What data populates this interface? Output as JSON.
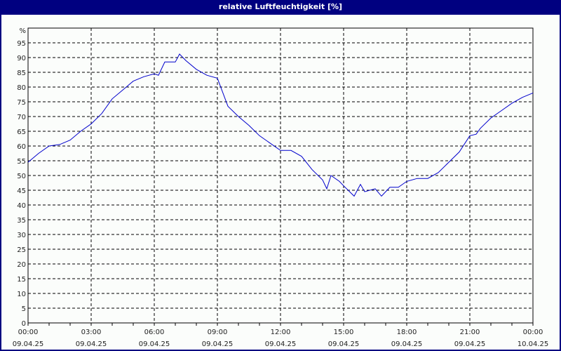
{
  "window": {
    "title": "relative Luftfeuchtigkeit [%]"
  },
  "colors": {
    "titlebar": "#000080",
    "background": "#fbfdfb",
    "series": "#0000cc",
    "grid": "#000000"
  },
  "chart_data": {
    "type": "line",
    "title": "relative Luftfeuchtigkeit [%]",
    "xlabel": "",
    "ylabel": "%",
    "ylim": [
      0,
      100
    ],
    "yticks": [
      0,
      5,
      10,
      15,
      20,
      25,
      30,
      35,
      40,
      45,
      50,
      55,
      60,
      65,
      70,
      75,
      80,
      85,
      90,
      95
    ],
    "xticks": [
      {
        "time": "00:00",
        "date": "09.04.25"
      },
      {
        "time": "03:00",
        "date": "09.04.25"
      },
      {
        "time": "06:00",
        "date": "09.04.25"
      },
      {
        "time": "09:00",
        "date": "09.04.25"
      },
      {
        "time": "12:00",
        "date": "09.04.25"
      },
      {
        "time": "15:00",
        "date": "09.04.25"
      },
      {
        "time": "18:00",
        "date": "09.04.25"
      },
      {
        "time": "21:00",
        "date": "09.04.25"
      },
      {
        "time": "00:00",
        "date": "10.04.25"
      }
    ],
    "grid": true,
    "legend": null,
    "series": [
      {
        "name": "relative Luftfeuchtigkeit",
        "x_hours": [
          0,
          0.5,
          1,
          1.5,
          2,
          2.5,
          3,
          3.5,
          4,
          4.5,
          5,
          5.5,
          6,
          6.2,
          6.5,
          7,
          7.2,
          7.5,
          8,
          8.5,
          9,
          9.5,
          10,
          10.5,
          11,
          11.5,
          12,
          12.5,
          13,
          13.5,
          14,
          14.2,
          14.4,
          14.8,
          15,
          15.5,
          15.8,
          16,
          16.5,
          16.8,
          17.2,
          17.6,
          18,
          18.5,
          19,
          19.5,
          20,
          20.5,
          21,
          21.3,
          21.5,
          22,
          22.5,
          23,
          23.5,
          24
        ],
        "values": [
          54.5,
          57.5,
          60,
          60.5,
          62,
          65,
          67.5,
          71,
          76,
          79,
          82,
          83.5,
          84.5,
          84,
          88.5,
          88.5,
          91.2,
          89,
          86,
          84,
          83,
          73.5,
          70,
          67,
          63.5,
          61,
          58.5,
          58.5,
          56.5,
          52,
          48.5,
          45.5,
          50,
          48,
          46.5,
          43,
          47,
          44.5,
          45.5,
          43,
          46,
          46,
          48,
          49,
          49,
          51,
          54.5,
          58,
          63.5,
          64,
          66,
          69.5,
          72,
          74.5,
          76.5,
          78
        ]
      }
    ]
  }
}
